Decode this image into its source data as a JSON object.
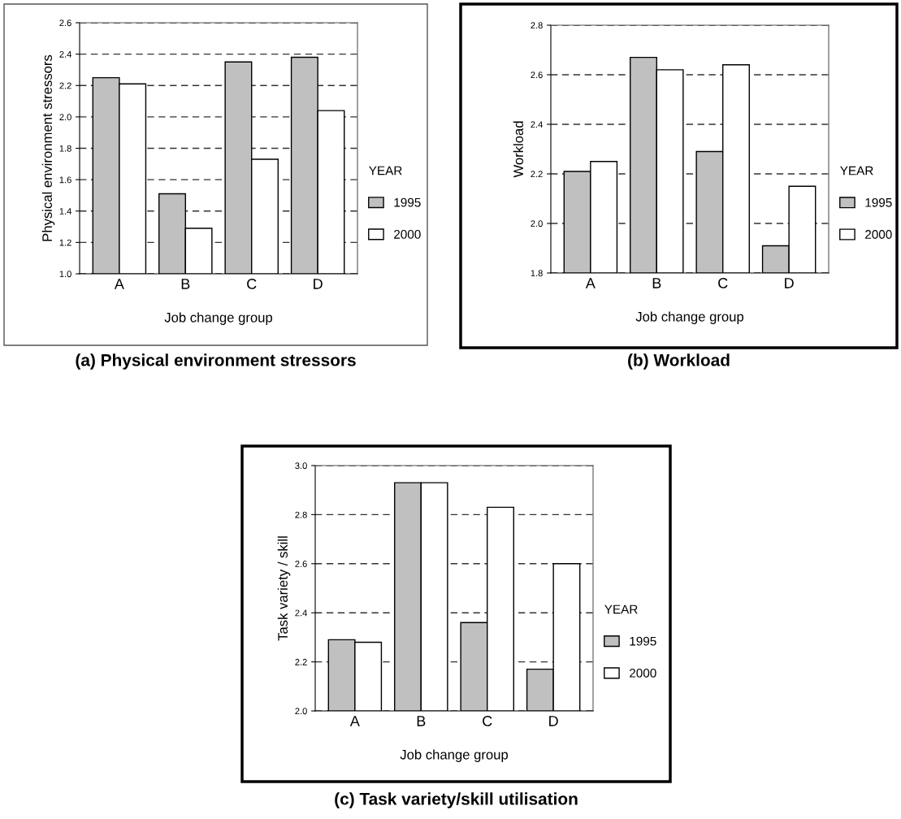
{
  "chart_data": [
    {
      "type": "bar",
      "title": "(a) Physical environment stressors",
      "xlabel": "Job change group",
      "ylabel": "Physical environment stressors",
      "legend_title": "YEAR",
      "legend": "right",
      "grid": "y",
      "categories": [
        "A",
        "B",
        "C",
        "D"
      ],
      "ylim": [
        1.0,
        2.6
      ],
      "yticks": [
        {
          "value": 1.0,
          "label": "1.0"
        },
        {
          "value": 1.2,
          "label": "1.2"
        },
        {
          "value": 1.4,
          "label": "1.4"
        },
        {
          "value": 1.6,
          "label": "1.6"
        },
        {
          "value": 1.8,
          "label": "1.8"
        },
        {
          "value": 2.0,
          "label": "2.0"
        },
        {
          "value": 2.2,
          "label": "2.2"
        },
        {
          "value": 2.4,
          "label": "2.4"
        },
        {
          "value": 2.6,
          "label": "2.6"
        }
      ],
      "series": [
        {
          "name": "1995",
          "color": "#c0c0c0",
          "values": [
            2.25,
            1.51,
            2.35,
            2.38
          ]
        },
        {
          "name": "2000",
          "color": "#ffffff",
          "values": [
            2.21,
            1.29,
            1.73,
            2.04
          ]
        }
      ]
    },
    {
      "type": "bar",
      "title": "(b) Workload",
      "xlabel": "Job change group",
      "ylabel": "Workload",
      "legend_title": "YEAR",
      "legend": "right",
      "grid": "y",
      "categories": [
        "A",
        "B",
        "C",
        "D"
      ],
      "ylim": [
        1.8,
        2.8
      ],
      "yticks": [
        {
          "value": 1.8,
          "label": "1.8"
        },
        {
          "value": 2.0,
          "label": "2.0"
        },
        {
          "value": 2.2,
          "label": "2.2"
        },
        {
          "value": 2.4,
          "label": "2.4"
        },
        {
          "value": 2.6,
          "label": "2.6"
        },
        {
          "value": 2.8,
          "label": "2.8"
        }
      ],
      "series": [
        {
          "name": "1995",
          "color": "#c0c0c0",
          "values": [
            2.21,
            2.67,
            2.29,
            1.91
          ]
        },
        {
          "name": "2000",
          "color": "#ffffff",
          "values": [
            2.25,
            2.62,
            2.64,
            2.15
          ]
        }
      ]
    },
    {
      "type": "bar",
      "title": "(c) Task variety/skill utilisation",
      "xlabel": "Job change group",
      "ylabel": "Task variety / skill",
      "legend_title": "YEAR",
      "legend": "right",
      "grid": "y",
      "categories": [
        "A",
        "B",
        "C",
        "D"
      ],
      "ylim": [
        2.0,
        3.0
      ],
      "yticks": [
        {
          "value": 2.0,
          "label": "2.0"
        },
        {
          "value": 2.2,
          "label": "2.2"
        },
        {
          "value": 2.4,
          "label": "2.4"
        },
        {
          "value": 2.6,
          "label": "2.6"
        },
        {
          "value": 2.8,
          "label": "2.8"
        },
        {
          "value": 3.0,
          "label": "3.0"
        }
      ],
      "series": [
        {
          "name": "1995",
          "color": "#c0c0c0",
          "values": [
            2.29,
            2.93,
            2.36,
            2.17
          ]
        },
        {
          "name": "2000",
          "color": "#ffffff",
          "values": [
            2.28,
            2.93,
            2.83,
            2.6
          ]
        }
      ]
    }
  ]
}
